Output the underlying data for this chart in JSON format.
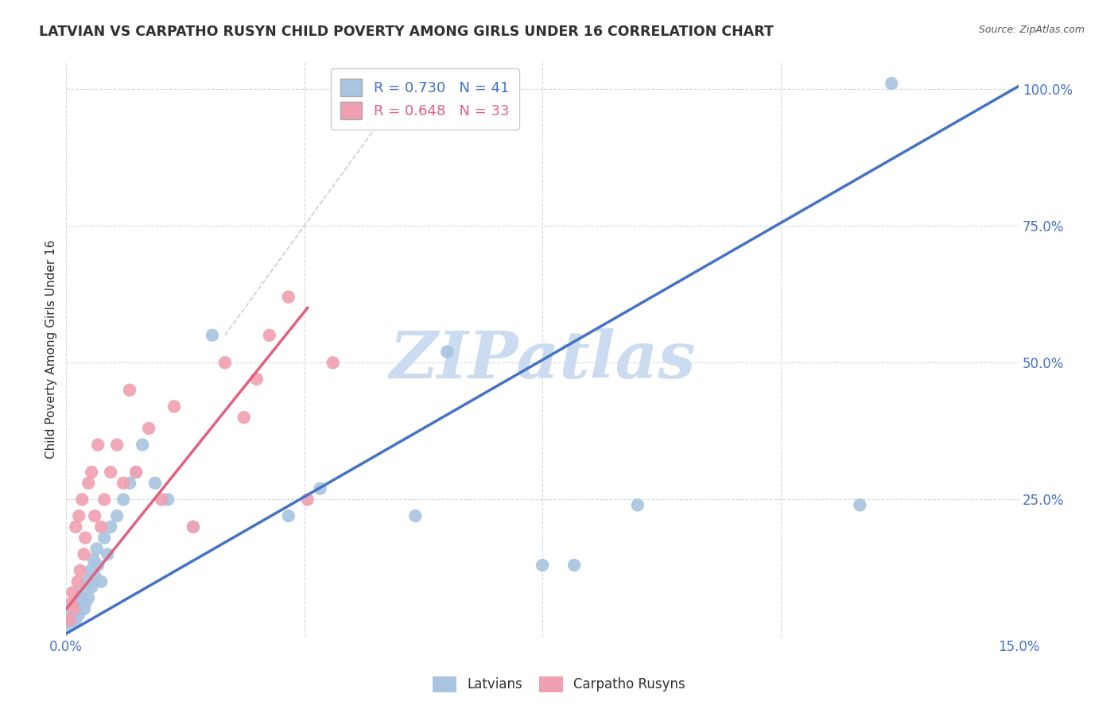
{
  "title": "LATVIAN VS CARPATHO RUSYN CHILD POVERTY AMONG GIRLS UNDER 16 CORRELATION CHART",
  "source": "Source: ZipAtlas.com",
  "ylabel": "Child Poverty Among Girls Under 16",
  "xlim": [
    0.0,
    15.0
  ],
  "ylim": [
    0.0,
    105.0
  ],
  "R_latvian": 0.73,
  "N_latvian": 41,
  "R_rusyn": 0.648,
  "N_rusyn": 33,
  "latvian_color": "#a8c4e0",
  "rusyn_color": "#f0a0b0",
  "latvian_line_color": "#4472c4",
  "rusyn_line_color": "#e06080",
  "watermark": "ZIPatlas",
  "watermark_color": "#ccdcf0",
  "background_color": "#ffffff",
  "grid_color": "#d0d8e8",
  "title_color": "#303030",
  "axis_label_color": "#4472c4",
  "latvian_x": [
    0.05,
    0.08,
    0.1,
    0.12,
    0.15,
    0.18,
    0.2,
    0.22,
    0.25,
    0.28,
    0.3,
    0.33,
    0.35,
    0.38,
    0.4,
    0.43,
    0.45,
    0.48,
    0.5,
    0.55,
    0.6,
    0.65,
    0.7,
    0.8,
    0.9,
    1.0,
    1.1,
    1.2,
    1.4,
    1.6,
    2.0,
    2.3,
    3.5,
    4.0,
    5.5,
    6.0,
    7.5,
    8.0,
    9.0,
    12.5,
    13.0
  ],
  "latvian_y": [
    2.0,
    3.0,
    4.0,
    5.0,
    3.0,
    6.0,
    4.0,
    7.0,
    8.0,
    5.0,
    6.0,
    10.0,
    7.0,
    12.0,
    9.0,
    14.0,
    11.0,
    16.0,
    13.0,
    10.0,
    18.0,
    15.0,
    20.0,
    22.0,
    25.0,
    28.0,
    30.0,
    35.0,
    28.0,
    25.0,
    20.0,
    55.0,
    22.0,
    27.0,
    22.0,
    52.0,
    13.0,
    13.0,
    24.0,
    24.0,
    101.0
  ],
  "rusyn_x": [
    0.05,
    0.08,
    0.1,
    0.12,
    0.15,
    0.18,
    0.2,
    0.22,
    0.25,
    0.28,
    0.3,
    0.35,
    0.4,
    0.45,
    0.5,
    0.55,
    0.6,
    0.7,
    0.8,
    0.9,
    1.0,
    1.1,
    1.3,
    1.5,
    1.7,
    2.0,
    2.5,
    2.8,
    3.0,
    3.2,
    3.5,
    3.8,
    4.2
  ],
  "rusyn_y": [
    3.0,
    6.0,
    8.0,
    5.0,
    20.0,
    10.0,
    22.0,
    12.0,
    25.0,
    15.0,
    18.0,
    28.0,
    30.0,
    22.0,
    35.0,
    20.0,
    25.0,
    30.0,
    35.0,
    28.0,
    45.0,
    30.0,
    38.0,
    25.0,
    42.0,
    20.0,
    50.0,
    40.0,
    47.0,
    55.0,
    62.0,
    25.0,
    50.0
  ],
  "latvian_line_x0": 0.0,
  "latvian_line_y0": 0.5,
  "latvian_line_x1": 15.0,
  "latvian_line_y1": 100.5,
  "rusyn_line_x0": 0.0,
  "rusyn_line_y0": 5.0,
  "rusyn_line_x1": 3.8,
  "rusyn_line_y1": 60.0,
  "ref_line_x0": 2.5,
  "ref_line_y0": 55.0,
  "ref_line_x1": 5.5,
  "ref_line_y1": 103.0
}
